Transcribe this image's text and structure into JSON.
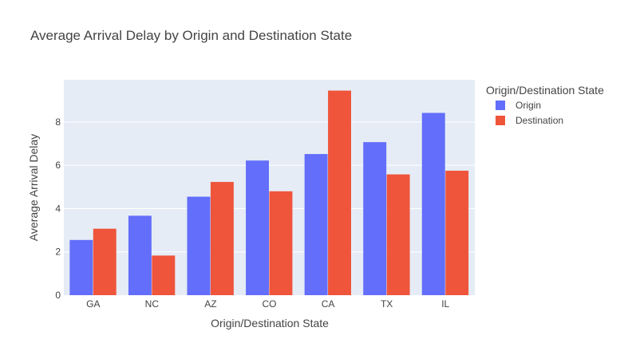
{
  "chart_data": {
    "type": "bar",
    "title": "Average Arrival Delay by Origin and Destination State",
    "xlabel": "Origin/Destination State",
    "ylabel": "Average Arrival Delay",
    "categories": [
      "GA",
      "NC",
      "AZ",
      "CO",
      "CA",
      "TX",
      "IL"
    ],
    "series": [
      {
        "name": "Origin",
        "color": "#636efa",
        "values": [
          2.55,
          3.67,
          4.55,
          6.22,
          6.52,
          7.07,
          8.42
        ]
      },
      {
        "name": "Destination",
        "color": "#ef553b",
        "values": [
          3.07,
          1.83,
          5.23,
          4.8,
          9.45,
          5.58,
          5.75
        ]
      }
    ],
    "ylim": [
      0,
      9.95
    ],
    "yticks": [
      0,
      2,
      4,
      6,
      8
    ],
    "grid": true,
    "legend": {
      "title": "Origin/Destination State",
      "placement": "right"
    },
    "plot_background": "#e5ecf6"
  }
}
